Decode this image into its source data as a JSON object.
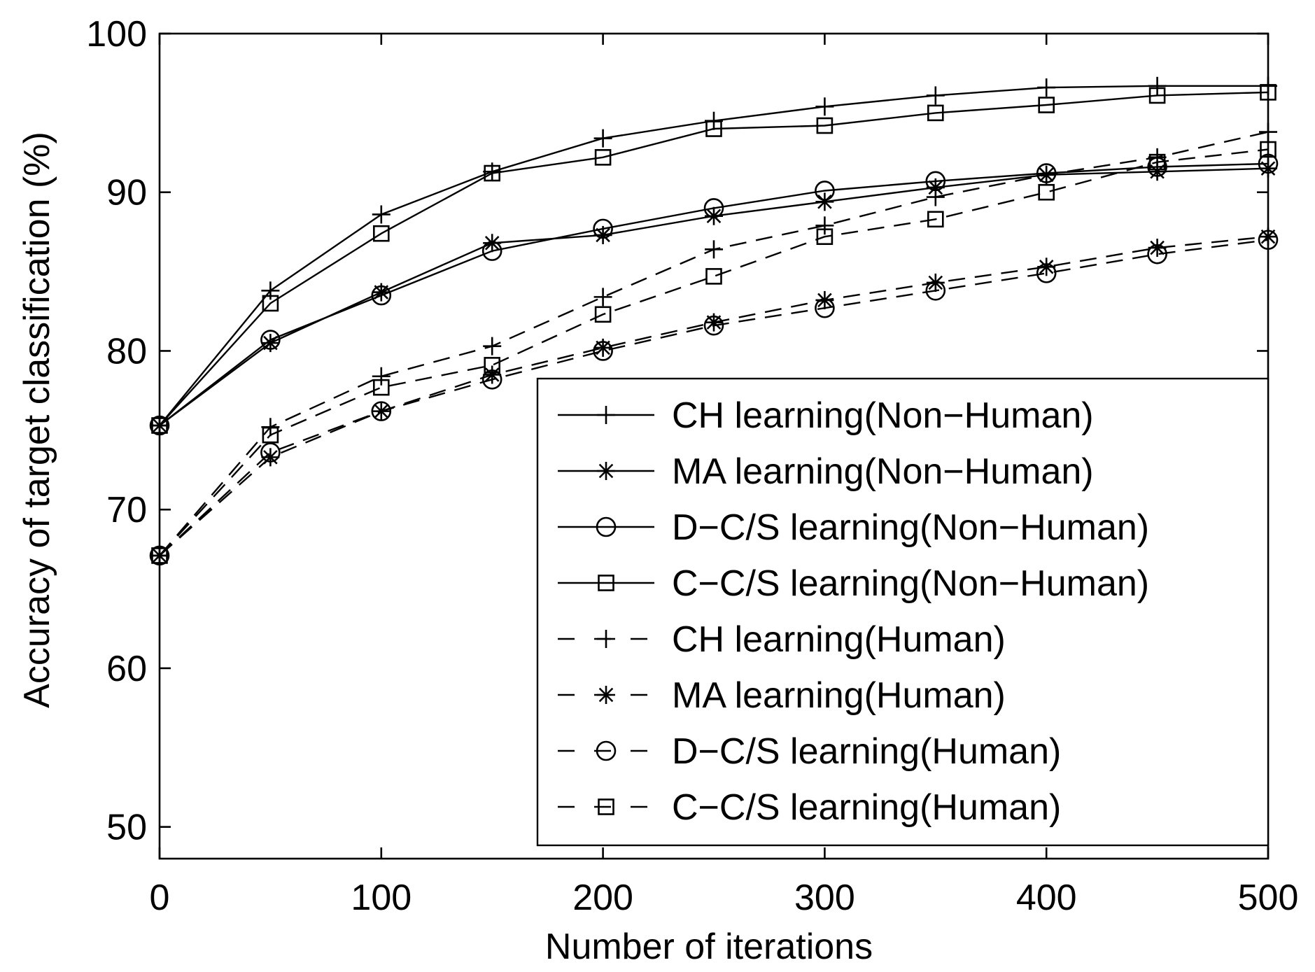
{
  "chart_data": {
    "type": "line",
    "title": "",
    "xlabel": "Number of iterations",
    "ylabel": "Accuracy of target classification (%)",
    "xlim": [
      0,
      500
    ],
    "ylim": [
      48,
      100
    ],
    "xticks": [
      "0",
      "100",
      "200",
      "300",
      "400",
      "500"
    ],
    "yticks": [
      "50",
      "60",
      "70",
      "80",
      "90",
      "100"
    ],
    "grid": false,
    "legend_position": "bottom-right",
    "x": [
      0,
      50,
      100,
      150,
      200,
      250,
      300,
      350,
      400,
      450,
      500
    ],
    "series": [
      {
        "name": "CH learning(Non−Human)",
        "style": "solid",
        "marker": "plus",
        "values": [
          75.3,
          83.8,
          88.6,
          91.3,
          93.4,
          94.5,
          95.4,
          96.1,
          96.6,
          96.7,
          96.7
        ]
      },
      {
        "name": "MA learning(Non−Human)",
        "style": "solid",
        "marker": "asterisk",
        "values": [
          75.3,
          80.5,
          83.7,
          86.8,
          87.3,
          88.5,
          89.4,
          90.3,
          91.1,
          91.3,
          91.5
        ]
      },
      {
        "name": "D−C/S learning(Non−Human)",
        "style": "solid",
        "marker": "circle",
        "values": [
          75.3,
          80.7,
          83.5,
          86.3,
          87.7,
          89.0,
          90.1,
          90.7,
          91.2,
          91.6,
          91.8
        ]
      },
      {
        "name": "C−C/S learning(Non−Human)",
        "style": "solid",
        "marker": "square",
        "values": [
          75.3,
          83.0,
          87.4,
          91.2,
          92.2,
          94.0,
          94.2,
          95.0,
          95.5,
          96.1,
          96.3
        ]
      },
      {
        "name": "CH learning(Human)",
        "style": "dashed",
        "marker": "plus",
        "values": [
          67.1,
          75.2,
          78.4,
          80.3,
          83.4,
          86.4,
          87.9,
          89.7,
          91.1,
          92.2,
          93.8
        ]
      },
      {
        "name": "MA learning(Human)",
        "style": "dashed",
        "marker": "asterisk",
        "values": [
          67.1,
          73.3,
          76.2,
          78.5,
          80.2,
          81.8,
          83.2,
          84.3,
          85.3,
          86.5,
          87.2
        ]
      },
      {
        "name": "D−C/S learning(Human)",
        "style": "dashed",
        "marker": "circle",
        "values": [
          67.1,
          73.6,
          76.2,
          78.2,
          80.0,
          81.6,
          82.7,
          83.8,
          84.9,
          86.1,
          87.0
        ]
      },
      {
        "name": "C−C/S learning(Human)",
        "style": "dashed",
        "marker": "square",
        "values": [
          67.1,
          74.7,
          77.7,
          79.1,
          82.3,
          84.7,
          87.2,
          88.3,
          90.0,
          91.9,
          92.7
        ]
      }
    ]
  }
}
